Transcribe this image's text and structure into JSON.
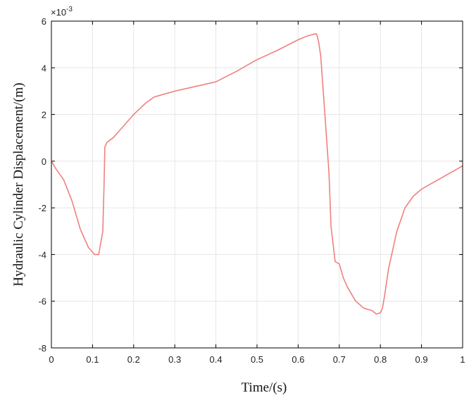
{
  "chart_data": {
    "type": "line",
    "title": "",
    "xlabel": "Time/(s)",
    "ylabel": "Hydraulic Cylinder Displacement/(m)",
    "y_scale_label": "×10",
    "y_scale_exp": "-3",
    "xlim": [
      0,
      1
    ],
    "ylim": [
      -8,
      6
    ],
    "x_ticks": [
      0,
      0.1,
      0.2,
      0.3,
      0.4,
      0.5,
      0.6,
      0.7,
      0.8,
      0.9,
      1
    ],
    "x_tick_labels": [
      "0",
      "0.1",
      "0.2",
      "0.3",
      "0.4",
      "0.5",
      "0.6",
      "0.7",
      "0.8",
      "0.9",
      "1"
    ],
    "y_ticks": [
      -8,
      -6,
      -4,
      -2,
      0,
      2,
      4,
      6
    ],
    "y_tick_labels": [
      "-8",
      "-6",
      "-4",
      "-2",
      "0",
      "2",
      "4",
      "6"
    ],
    "grid": true,
    "line_color": "#f08080",
    "series": [
      {
        "x": [
          0,
          0.01,
          0.03,
          0.05,
          0.07,
          0.09,
          0.105,
          0.115,
          0.125,
          0.128,
          0.13,
          0.135,
          0.15,
          0.17,
          0.2,
          0.23,
          0.25,
          0.3,
          0.35,
          0.4,
          0.45,
          0.5,
          0.55,
          0.6,
          0.62,
          0.64,
          0.645,
          0.65,
          0.655,
          0.665,
          0.675,
          0.68,
          0.69,
          0.7,
          0.71,
          0.72,
          0.73,
          0.74,
          0.76,
          0.78,
          0.79,
          0.8,
          0.805,
          0.81,
          0.82,
          0.84,
          0.86,
          0.88,
          0.9,
          0.95,
          1.0
        ],
        "y": [
          0,
          -0.3,
          -0.8,
          -1.7,
          -2.9,
          -3.7,
          -4.0,
          -4.0,
          -3.0,
          -1.0,
          0.6,
          0.8,
          1.0,
          1.4,
          2.0,
          2.5,
          2.75,
          3.0,
          3.2,
          3.4,
          3.85,
          4.35,
          4.75,
          5.2,
          5.35,
          5.45,
          5.45,
          5.1,
          4.5,
          2.0,
          -0.5,
          -2.8,
          -4.3,
          -4.4,
          -5.0,
          -5.4,
          -5.7,
          -6.0,
          -6.3,
          -6.4,
          -6.55,
          -6.5,
          -6.3,
          -5.8,
          -4.6,
          -3.0,
          -2.0,
          -1.5,
          -1.2,
          -0.7,
          -0.2
        ]
      }
    ]
  }
}
